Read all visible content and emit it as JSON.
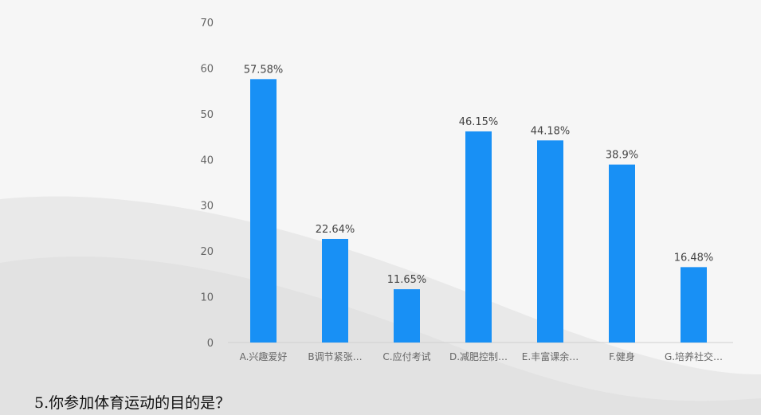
{
  "question": {
    "text": "5.你参加体育运动的目的是？"
  },
  "colors": {
    "bar": "#1890f5",
    "axis_text": "#666666",
    "label_text": "#444444",
    "axis_line": "#d0d0d0"
  },
  "chart_data": {
    "type": "bar",
    "categories": [
      "A.兴趣爱好",
      "B调节紧张…",
      "C.应付考试",
      "D.减肥控制…",
      "E.丰富课余…",
      "F.健身",
      "G.培养社交…"
    ],
    "values": [
      57.58,
      22.64,
      11.65,
      46.15,
      44.18,
      38.9,
      16.48
    ],
    "data_labels": [
      "57.58%",
      "22.64%",
      "11.65%",
      "46.15%",
      "44.18%",
      "38.9%",
      "16.48%"
    ],
    "ylim": [
      0,
      70
    ],
    "yticks": [
      0,
      10,
      20,
      30,
      40,
      50,
      60,
      70
    ],
    "grid": false
  }
}
